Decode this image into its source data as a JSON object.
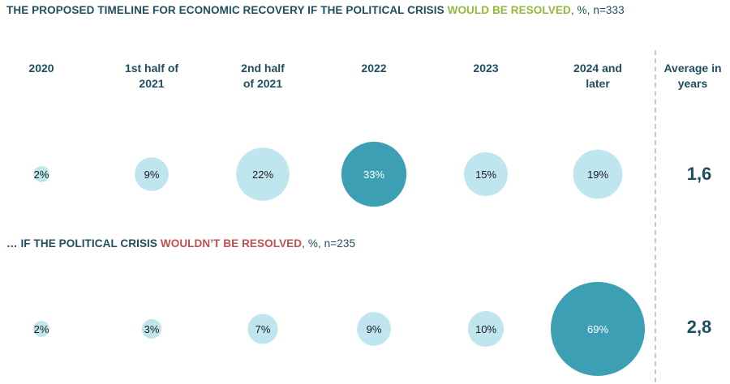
{
  "title1": {
    "main": "THE PROPOSED TIMELINE FOR ECONOMIC RECOVERY IF THE POLITICAL CRISIS ",
    "highlight": "WOULD BE RESOLVED",
    "suffix": ", %, n=333"
  },
  "title2": {
    "main": "… IF THE POLITICAL CRISIS ",
    "highlight": "WOULDN’T BE RESOLVED",
    "suffix": ", %, n=235"
  },
  "headers": [
    {
      "line1": "2020",
      "line2": ""
    },
    {
      "line1": "1st half of",
      "line2": "2021"
    },
    {
      "line1": "2nd half",
      "line2": "of 2021"
    },
    {
      "line1": "2022",
      "line2": ""
    },
    {
      "line1": "2023",
      "line2": ""
    },
    {
      "line1": "2024 and",
      "line2": "later"
    }
  ],
  "average_header": {
    "line1": "Average in",
    "line2": "years"
  },
  "colors": {
    "title": "#1f4e5f",
    "resolved": "#94b93a",
    "not_resolved": "#c0504d",
    "bubble_light": "#bfe6ee",
    "bubble_max": "#3d9fb3",
    "label_dark": "#1a1a1a",
    "label_light": "#ffffff"
  },
  "chart_data": [
    {
      "type": "bubble",
      "title": "THE PROPOSED TIMELINE FOR ECONOMIC RECOVERY IF THE POLITICAL CRISIS WOULD BE RESOLVED",
      "unit": "%",
      "n": 333,
      "categories": [
        "2020",
        "1st half of 2021",
        "2nd half of 2021",
        "2022",
        "2023",
        "2024 and later"
      ],
      "values": [
        2,
        9,
        22,
        33,
        15,
        19
      ],
      "labels": [
        "2%",
        "9%",
        "22%",
        "33%",
        "15%",
        "19%"
      ],
      "average_years": "1,6"
    },
    {
      "type": "bubble",
      "title": "… IF THE POLITICAL CRISIS WOULDN’T BE RESOLVED",
      "unit": "%",
      "n": 235,
      "categories": [
        "2020",
        "1st half of 2021",
        "2nd half of 2021",
        "2022",
        "2023",
        "2024 and later"
      ],
      "values": [
        2,
        3,
        7,
        9,
        10,
        69
      ],
      "labels": [
        "2%",
        "3%",
        "7%",
        "9%",
        "10%",
        "69%"
      ],
      "average_years": "2,8"
    }
  ]
}
